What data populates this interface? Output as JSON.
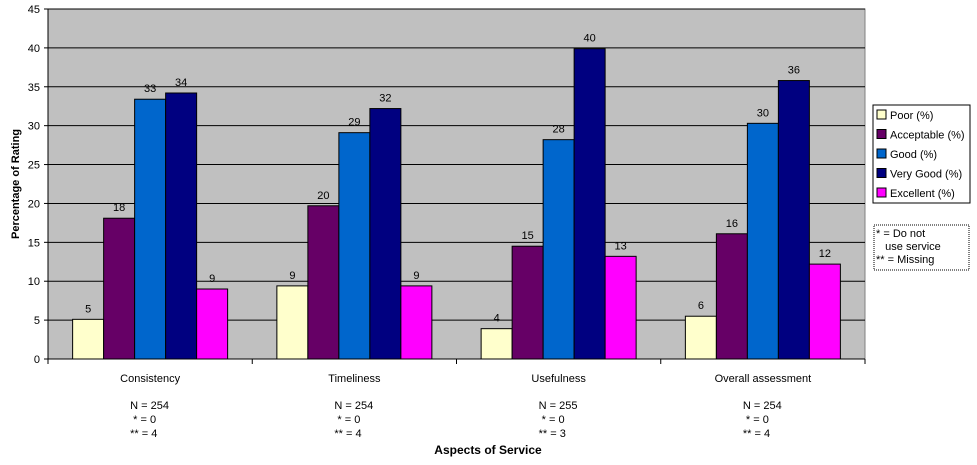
{
  "chart_data": {
    "type": "bar",
    "title": "",
    "xlabel": "Aspects of Service",
    "ylabel": "Percentage of Rating",
    "ylim": [
      0,
      45
    ],
    "yticks": [
      0,
      5,
      10,
      15,
      20,
      25,
      30,
      35,
      40,
      45
    ],
    "grid": true,
    "legend_position": "right",
    "categories": [
      "Consistency",
      "Timeliness",
      "Usefulness",
      "Overall assessment"
    ],
    "category_notes": [
      [
        "N = 254",
        " * = 0",
        "** = 4"
      ],
      [
        "N = 254",
        " * = 0",
        "** = 4"
      ],
      [
        "N = 255",
        " * = 0",
        "** = 3"
      ],
      [
        "N = 254",
        " * = 0",
        "** = 4"
      ]
    ],
    "series": [
      {
        "name": "Poor (%)",
        "color": "#FFFFCC",
        "values": [
          5.1,
          9.4,
          3.9,
          5.5
        ],
        "labels": [
          "5",
          "9",
          "4",
          "6"
        ]
      },
      {
        "name": "Acceptable (%)",
        "color": "#660066",
        "values": [
          18.1,
          19.7,
          14.5,
          16.1
        ],
        "labels": [
          "18",
          "20",
          "15",
          "16"
        ]
      },
      {
        "name": "Good (%)",
        "color": "#0066CC",
        "values": [
          33.4,
          29.1,
          28.2,
          30.3
        ],
        "labels": [
          "33",
          "29",
          "28",
          "30"
        ]
      },
      {
        "name": "Very Good (%)",
        "color": "#000080",
        "values": [
          34.2,
          32.2,
          39.9,
          35.8
        ],
        "labels": [
          "34",
          "32",
          "40",
          "36"
        ]
      },
      {
        "name": "Excellent (%)",
        "color": "#FF00FF",
        "values": [
          9.0,
          9.4,
          13.2,
          12.2
        ],
        "labels": [
          "9",
          "9",
          "13",
          "12"
        ]
      }
    ],
    "note_box": [
      "* = Do not",
      "   use service",
      "** = Missing"
    ]
  }
}
